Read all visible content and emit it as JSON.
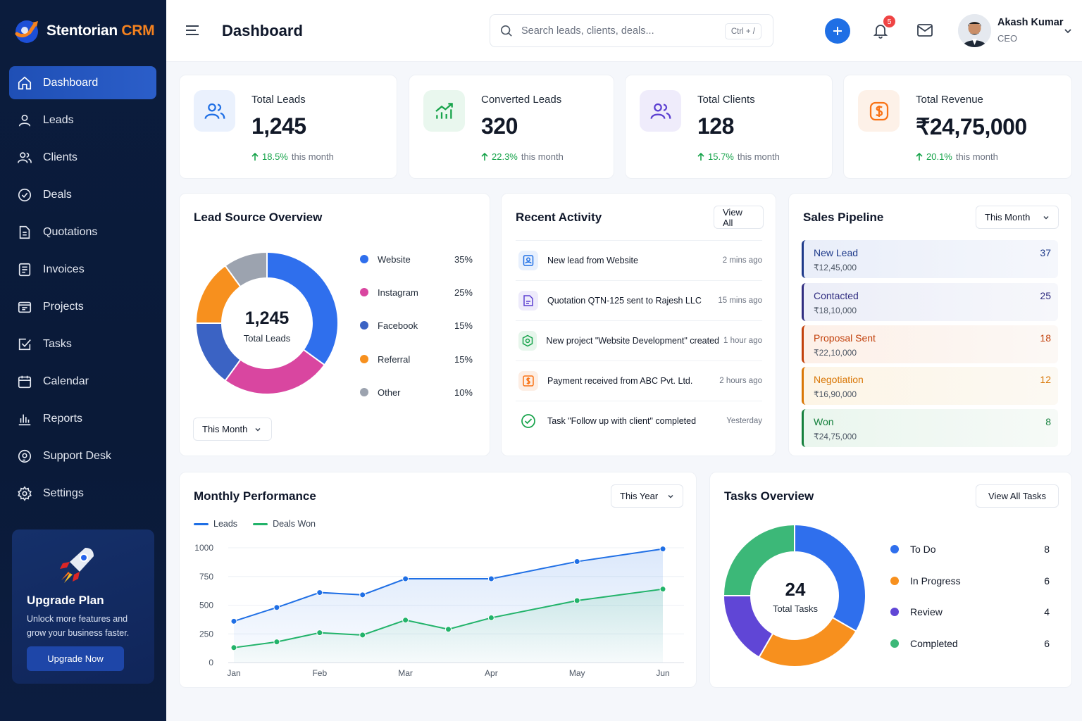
{
  "app": {
    "brand_name": "Stentorian",
    "brand_suffix": "CRM",
    "brand_color": "#f5821f"
  },
  "sidebar": {
    "items": [
      {
        "label": "Dashboard",
        "icon": "home-icon",
        "active": true
      },
      {
        "label": "Leads",
        "icon": "user-icon"
      },
      {
        "label": "Clients",
        "icon": "users-icon"
      },
      {
        "label": "Deals",
        "icon": "deal-icon"
      },
      {
        "label": "Quotations",
        "icon": "document-icon"
      },
      {
        "label": "Invoices",
        "icon": "invoice-icon"
      },
      {
        "label": "Projects",
        "icon": "projects-icon"
      },
      {
        "label": "Tasks",
        "icon": "checkbox-icon"
      },
      {
        "label": "Calendar",
        "icon": "calendar-icon"
      },
      {
        "label": "Reports",
        "icon": "bar-chart-icon"
      },
      {
        "label": "Support Desk",
        "icon": "headset-icon"
      },
      {
        "label": "Settings",
        "icon": "gear-icon"
      }
    ],
    "upgrade": {
      "title": "Upgrade Plan",
      "text": "Unlock more features and grow your business faster.",
      "button": "Upgrade Now"
    }
  },
  "header": {
    "title": "Dashboard",
    "search_placeholder": "Search leads, clients, deals...",
    "search_shortcut": "Ctrl + /",
    "notification_count": "5",
    "user": {
      "name": "Akash Kumar",
      "role": "CEO"
    }
  },
  "stats": [
    {
      "label": "Total Leads",
      "value": "1,245",
      "change": "18.5%",
      "period": "this month",
      "icon": "users-icon",
      "color": "#1f6fe5"
    },
    {
      "label": "Converted Leads",
      "value": "320",
      "change": "22.3%",
      "period": "this month",
      "icon": "growth-chart-icon",
      "color": "#16a34a"
    },
    {
      "label": "Total Clients",
      "value": "128",
      "change": "15.7%",
      "period": "this month",
      "icon": "users-icon",
      "color": "#5b3fd1"
    },
    {
      "label": "Total Revenue",
      "value": "₹24,75,000",
      "change": "20.1%",
      "period": "this month",
      "icon": "dollar-icon",
      "color": "#f97316"
    }
  ],
  "lead_source": {
    "title": "Lead Source Overview",
    "center_value": "1,245",
    "center_label": "Total Leads",
    "filter": "This Month",
    "items": [
      {
        "label": "Website",
        "pct": "35%",
        "value": 35,
        "color": "#2f6fed"
      },
      {
        "label": "Instagram",
        "pct": "25%",
        "value": 25,
        "color": "#d946a0"
      },
      {
        "label": "Facebook",
        "pct": "15%",
        "value": 15,
        "color": "#3b63c4"
      },
      {
        "label": "Referral",
        "pct": "15%",
        "value": 15,
        "color": "#f7901e"
      },
      {
        "label": "Other",
        "pct": "10%",
        "value": 10,
        "color": "#9ca3af"
      }
    ]
  },
  "activity": {
    "title": "Recent Activity",
    "view_all": "View All",
    "items": [
      {
        "text": "New lead from Website",
        "time": "2 mins ago",
        "icon": "lead-icon",
        "color": "#1f6fe5"
      },
      {
        "text": "Quotation QTN-125 sent to Rajesh LLC",
        "time": "15 mins ago",
        "icon": "quotation-icon",
        "color": "#5b3fd1"
      },
      {
        "text": "New project \"Website Development\" created",
        "time": "1 hour ago",
        "icon": "project-icon",
        "color": "#16a34a"
      },
      {
        "text": "Payment received from ABC Pvt. Ltd.",
        "time": "2 hours ago",
        "icon": "payment-icon",
        "color": "#f97316"
      },
      {
        "text": "Task \"Follow up with client\" completed",
        "time": "Yesterday",
        "icon": "check-circle-icon",
        "color": "#16a34a"
      }
    ]
  },
  "pipeline": {
    "title": "Sales Pipeline",
    "filter": "This Month",
    "stages": [
      {
        "name": "New Lead",
        "amount": "₹12,45,000",
        "count": "37",
        "color": "#1e3a8a"
      },
      {
        "name": "Contacted",
        "amount": "₹18,10,000",
        "count": "25",
        "color": "#312e81"
      },
      {
        "name": "Proposal Sent",
        "amount": "₹22,10,000",
        "count": "18",
        "color": "#c2410c"
      },
      {
        "name": "Negotiation",
        "amount": "₹16,90,000",
        "count": "12",
        "color": "#d97706"
      },
      {
        "name": "Won",
        "amount": "₹24,75,000",
        "count": "8",
        "color": "#15803d"
      }
    ]
  },
  "performance": {
    "title": "Monthly Performance",
    "filter": "This Year"
  },
  "chart_data": {
    "type": "line",
    "x": [
      "Jan",
      "",
      "Feb",
      "",
      "Mar",
      "",
      "Apr",
      "",
      "May",
      "",
      "Jun"
    ],
    "tick_labels": [
      "Jan",
      "Feb",
      "Mar",
      "Apr",
      "May",
      "Jun"
    ],
    "series": [
      {
        "name": "Leads",
        "color": "#1f6fe5",
        "values": [
          360,
          480,
          610,
          590,
          730,
          null,
          730,
          null,
          880,
          null,
          990
        ]
      },
      {
        "name": "Deals Won",
        "color": "#22b36a",
        "values": [
          130,
          180,
          260,
          240,
          370,
          290,
          390,
          null,
          540,
          null,
          640
        ]
      }
    ],
    "yticks": [
      0,
      250,
      500,
      750,
      1000
    ],
    "ylim": [
      0,
      1000
    ],
    "legend": "top-left",
    "grid": true
  },
  "tasks": {
    "title": "Tasks Overview",
    "view_all": "View All Tasks",
    "center_value": "24",
    "center_label": "Total Tasks",
    "items": [
      {
        "label": "To Do",
        "count": "8",
        "value": 8,
        "color": "#2f6fed"
      },
      {
        "label": "In Progress",
        "count": "6",
        "value": 6,
        "color": "#f7901e"
      },
      {
        "label": "Review",
        "count": "4",
        "value": 4,
        "color": "#6046d6"
      },
      {
        "label": "Completed",
        "count": "6",
        "value": 6,
        "color": "#3cb878"
      }
    ]
  }
}
